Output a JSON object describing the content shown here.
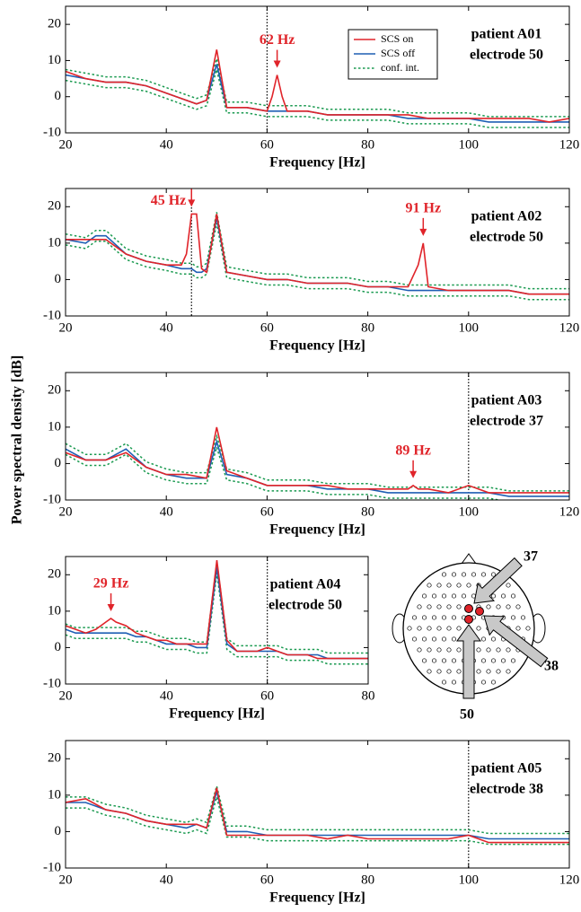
{
  "ylabel": "Power spectral density [dB]",
  "montage": {
    "labels": [
      "37",
      "38",
      "50"
    ]
  },
  "chart_data": [
    {
      "type": "line",
      "xlabel": "Frequency [Hz]",
      "xlim": [
        20,
        120
      ],
      "xticks": [
        20,
        40,
        60,
        80,
        100,
        120
      ],
      "ylim": [
        -10,
        25
      ],
      "yticks": [
        -10,
        0,
        10,
        20
      ],
      "vline": 60,
      "legend": true,
      "text_lines": [
        "patient A01",
        "electrode 50"
      ],
      "annotations": [
        {
          "text": "62 Hz",
          "x": 62
        }
      ],
      "x": [
        20,
        24,
        28,
        32,
        36,
        40,
        44,
        46,
        48,
        50,
        52,
        56,
        60,
        61,
        62,
        63,
        64,
        68,
        72,
        76,
        80,
        84,
        88,
        92,
        96,
        100,
        104,
        108,
        112,
        116,
        120
      ],
      "series": [
        {
          "name": "SCS on",
          "color": "#e0242a",
          "values": [
            7,
            5,
            4,
            4,
            3,
            1,
            -1,
            -2,
            -1,
            13,
            -3,
            -3,
            -4,
            0,
            6,
            0,
            -4,
            -4,
            -5,
            -5,
            -5,
            -5,
            -5,
            -6,
            -6,
            -6,
            -6,
            -6,
            -6,
            -7,
            -6
          ]
        },
        {
          "name": "SCS off",
          "color": "#1f5fb4",
          "values": [
            6,
            5,
            4,
            4,
            3,
            1,
            -1,
            -2,
            -1,
            9,
            -3,
            -3,
            -4,
            -4,
            -4,
            -4,
            -4,
            -4,
            -5,
            -5,
            -5,
            -5,
            -6,
            -6,
            -6,
            -6,
            -7,
            -7,
            -7,
            -7,
            -7
          ]
        },
        {
          "name": "conf. int.",
          "color": "#1a9a50",
          "upper": [
            7.5,
            6.5,
            5.5,
            5.5,
            4.5,
            2.5,
            0.5,
            -0.5,
            0.5,
            10.5,
            -1.5,
            -1.5,
            -2.5,
            -2.5,
            -2.5,
            -2.5,
            -2.5,
            -2.5,
            -3.5,
            -3.5,
            -3.5,
            -3.5,
            -4.5,
            -4.5,
            -4.5,
            -4.5,
            -5.5,
            -5.5,
            -5.5,
            -5.5,
            -5.5
          ],
          "lower": [
            4.5,
            3.5,
            2.5,
            2.5,
            1.5,
            -0.5,
            -2.5,
            -3.5,
            -2.5,
            7.5,
            -4.5,
            -4.5,
            -5.5,
            -5.5,
            -5.5,
            -5.5,
            -5.5,
            -5.5,
            -6.5,
            -6.5,
            -6.5,
            -6.5,
            -7.5,
            -7.5,
            -7.5,
            -7.5,
            -8.5,
            -8.5,
            -8.5,
            -8.5,
            -8.5
          ]
        }
      ]
    },
    {
      "type": "line",
      "xlabel": "Frequency [Hz]",
      "xlim": [
        20,
        120
      ],
      "xticks": [
        20,
        40,
        60,
        80,
        100,
        120
      ],
      "ylim": [
        -10,
        25
      ],
      "yticks": [
        -10,
        0,
        10,
        20
      ],
      "vline": 45,
      "text_lines": [
        "patient A02",
        "electrode 50"
      ],
      "annotations": [
        {
          "text": "45 Hz",
          "x": 45
        },
        {
          "text": "91 Hz",
          "x": 91
        }
      ],
      "x": [
        20,
        24,
        26,
        28,
        32,
        36,
        40,
        43,
        44,
        45,
        46,
        47,
        48,
        50,
        52,
        56,
        60,
        64,
        68,
        72,
        76,
        80,
        84,
        88,
        90,
        91,
        92,
        96,
        100,
        104,
        108,
        112,
        116,
        120
      ],
      "series": [
        {
          "color": "#e0242a",
          "values": [
            11,
            11,
            11,
            11,
            7,
            5,
            4,
            4,
            7,
            18,
            18,
            3,
            2,
            18,
            2,
            1,
            0,
            0,
            -1,
            -1,
            -1,
            -2,
            -2,
            -2,
            4,
            10,
            -2,
            -3,
            -3,
            -3,
            -3,
            -4,
            -4,
            -4
          ]
        },
        {
          "color": "#1f5fb4",
          "values": [
            11,
            10,
            12,
            12,
            7,
            5,
            4,
            3,
            3,
            3,
            2,
            2,
            3,
            17,
            2,
            1,
            0,
            0,
            -1,
            -1,
            -1,
            -2,
            -2,
            -3,
            -3,
            -3,
            -3,
            -3,
            -3,
            -3,
            -3,
            -4,
            -4,
            -4
          ]
        },
        {
          "color": "#1a9a50",
          "upper": [
            12.5,
            11.5,
            13.5,
            13.5,
            8.5,
            6.5,
            5.5,
            4.5,
            4.5,
            4.5,
            3.5,
            3.5,
            4.5,
            18.5,
            3.5,
            2.5,
            1.5,
            1.5,
            0.5,
            0.5,
            0.5,
            -0.5,
            -0.5,
            -1.5,
            -1.5,
            -1.5,
            -1.5,
            -1.5,
            -1.5,
            -1.5,
            -1.5,
            -2.5,
            -2.5,
            -2.5
          ],
          "lower": [
            9.5,
            8.5,
            10.5,
            10.5,
            5.5,
            3.5,
            2.5,
            1.5,
            1.5,
            1.5,
            0.5,
            0.5,
            1.5,
            15.5,
            0.5,
            -0.5,
            -1.5,
            -1.5,
            -2.5,
            -2.5,
            -2.5,
            -3.5,
            -3.5,
            -4.5,
            -4.5,
            -4.5,
            -4.5,
            -4.5,
            -4.5,
            -4.5,
            -4.5,
            -5.5,
            -5.5,
            -5.5
          ]
        }
      ]
    },
    {
      "type": "line",
      "xlabel": "Frequency [Hz]",
      "xlim": [
        20,
        120
      ],
      "xticks": [
        20,
        40,
        60,
        80,
        100,
        120
      ],
      "ylim": [
        -10,
        25
      ],
      "yticks": [
        -10,
        0,
        10,
        20
      ],
      "vline": 100,
      "text_lines": [
        "patient A03",
        "electrode 37"
      ],
      "annotations": [
        {
          "text": "89 Hz",
          "x": 89
        }
      ],
      "x": [
        20,
        24,
        28,
        32,
        36,
        40,
        44,
        48,
        50,
        52,
        56,
        60,
        64,
        68,
        72,
        76,
        80,
        84,
        88,
        89,
        90,
        92,
        96,
        100,
        104,
        108,
        112,
        116,
        120
      ],
      "series": [
        {
          "color": "#e0242a",
          "values": [
            3,
            1,
            1,
            3,
            -1,
            -3,
            -3,
            -4,
            10,
            -2,
            -4,
            -6,
            -6,
            -6,
            -6,
            -7,
            -7,
            -7,
            -7,
            -6,
            -7,
            -7,
            -8,
            -6,
            -8,
            -8,
            -8,
            -8,
            -8
          ]
        },
        {
          "color": "#1f5fb4",
          "values": [
            4,
            1,
            1,
            4,
            -1,
            -3,
            -4,
            -4,
            6,
            -3,
            -4,
            -6,
            -6,
            -6,
            -7,
            -7,
            -7,
            -8,
            -8,
            -8,
            -8,
            -8,
            -8,
            -8,
            -8,
            -9,
            -9,
            -9,
            -9
          ]
        },
        {
          "color": "#1a9a50",
          "upper": [
            5.5,
            2.5,
            2.5,
            5.5,
            0.5,
            -1.5,
            -2.5,
            -2.5,
            7.5,
            -1.5,
            -2.5,
            -4.5,
            -4.5,
            -4.5,
            -5.5,
            -5.5,
            -5.5,
            -6.5,
            -6.5,
            -6.5,
            -6.5,
            -6.5,
            -6.5,
            -6.5,
            -6.5,
            -7.5,
            -7.5,
            -7.5,
            -7.5
          ],
          "lower": [
            2.5,
            -0.5,
            -0.5,
            2.5,
            -2.5,
            -4.5,
            -5.5,
            -5.5,
            4.5,
            -4.5,
            -5.5,
            -7.5,
            -7.5,
            -7.5,
            -8.5,
            -8.5,
            -8.5,
            -9.5,
            -9.5,
            -9.5,
            -9.5,
            -9.5,
            -9.5,
            -9.5,
            -9.5,
            -10.5,
            -10.5,
            -10.5,
            -10.5
          ]
        }
      ]
    },
    {
      "type": "line",
      "xlabel": "Frequency [Hz]",
      "xlim": [
        20,
        80
      ],
      "xticks": [
        20,
        40,
        60,
        80
      ],
      "ylim": [
        -10,
        25
      ],
      "yticks": [
        -10,
        0,
        10,
        20
      ],
      "vline": 60,
      "text_lines": [
        "patient A04",
        "electrode 50"
      ],
      "annotations": [
        {
          "text": "29 Hz",
          "x": 29
        }
      ],
      "x": [
        20,
        22,
        24,
        26,
        28,
        29,
        30,
        32,
        34,
        36,
        38,
        40,
        42,
        44,
        46,
        48,
        50,
        52,
        54,
        56,
        58,
        60,
        62,
        64,
        66,
        68,
        70,
        72,
        74,
        76,
        78,
        80
      ],
      "series": [
        {
          "color": "#e0242a",
          "values": [
            6,
            5,
            4,
            5,
            7,
            8,
            7,
            6,
            4,
            3,
            2,
            2,
            1,
            1,
            1,
            1,
            24,
            2,
            -1,
            -1,
            -1,
            0,
            -1,
            -2,
            -2,
            -2,
            -3,
            -3,
            -3,
            -3,
            -3,
            -3
          ]
        },
        {
          "color": "#1f5fb4",
          "values": [
            5,
            4,
            4,
            4,
            4,
            4,
            4,
            4,
            3,
            3,
            2,
            1,
            1,
            1,
            0,
            0,
            22,
            1,
            -1,
            -1,
            -1,
            -1,
            -1,
            -2,
            -2,
            -2,
            -2,
            -3,
            -3,
            -3,
            -3,
            -3
          ]
        },
        {
          "color": "#1a9a50",
          "upper": [
            6.5,
            5.5,
            5.5,
            5.5,
            5.5,
            5.5,
            5.5,
            5.5,
            4.5,
            4.5,
            3.5,
            2.5,
            2.5,
            2.5,
            1.5,
            1.5,
            23.5,
            2.5,
            0.5,
            0.5,
            0.5,
            0.5,
            0.5,
            -0.5,
            -0.5,
            -0.5,
            -0.5,
            -1.5,
            -1.5,
            -1.5,
            -1.5,
            -1.5
          ],
          "lower": [
            3.5,
            2.5,
            2.5,
            2.5,
            2.5,
            2.5,
            2.5,
            2.5,
            1.5,
            1.5,
            0.5,
            -0.5,
            -0.5,
            -0.5,
            -1.5,
            -1.5,
            20.5,
            -0.5,
            -2.5,
            -2.5,
            -2.5,
            -2.5,
            -2.5,
            -3.5,
            -3.5,
            -3.5,
            -3.5,
            -4.5,
            -4.5,
            -4.5,
            -4.5,
            -4.5
          ]
        }
      ]
    },
    {
      "type": "line",
      "xlabel": "Frequency [Hz]",
      "xlim": [
        20,
        120
      ],
      "xticks": [
        20,
        40,
        60,
        80,
        100,
        120
      ],
      "ylim": [
        -10,
        25
      ],
      "yticks": [
        -10,
        0,
        10,
        20
      ],
      "vline": 100,
      "text_lines": [
        "patient A05",
        "electrode 38"
      ],
      "x": [
        20,
        24,
        28,
        32,
        36,
        40,
        44,
        46,
        48,
        50,
        52,
        56,
        60,
        64,
        68,
        72,
        76,
        80,
        84,
        88,
        92,
        96,
        100,
        104,
        108,
        112,
        116,
        120
      ],
      "series": [
        {
          "color": "#e0242a",
          "values": [
            8,
            9,
            6,
            5,
            3,
            2,
            2,
            2,
            1,
            12,
            -1,
            -1,
            -1,
            -1,
            -1,
            -2,
            -1,
            -2,
            -2,
            -2,
            -2,
            -2,
            -1,
            -3,
            -3,
            -3,
            -3,
            -3
          ]
        },
        {
          "color": "#1f5fb4",
          "values": [
            8,
            8,
            6,
            5,
            3,
            2,
            1,
            2,
            1,
            11,
            0,
            0,
            -1,
            -1,
            -1,
            -1,
            -1,
            -1,
            -1,
            -1,
            -1,
            -1,
            -1,
            -2,
            -2,
            -2,
            -2,
            -2
          ]
        },
        {
          "color": "#1a9a50",
          "upper": [
            9.5,
            9.5,
            7.5,
            6.5,
            4.5,
            3.5,
            2.5,
            3.5,
            2.5,
            12.5,
            1.5,
            1.5,
            0.5,
            0.5,
            0.5,
            0.5,
            0.5,
            0.5,
            0.5,
            0.5,
            0.5,
            0.5,
            0.5,
            -0.5,
            -0.5,
            -0.5,
            -0.5,
            -0.5
          ],
          "lower": [
            6.5,
            6.5,
            4.5,
            3.5,
            1.5,
            0.5,
            -0.5,
            0.5,
            -0.5,
            9.5,
            -1.5,
            -1.5,
            -2.5,
            -2.5,
            -2.5,
            -2.5,
            -2.5,
            -2.5,
            -2.5,
            -2.5,
            -2.5,
            -2.5,
            -2.5,
            -3.5,
            -3.5,
            -3.5,
            -3.5,
            -3.5
          ]
        }
      ]
    }
  ]
}
